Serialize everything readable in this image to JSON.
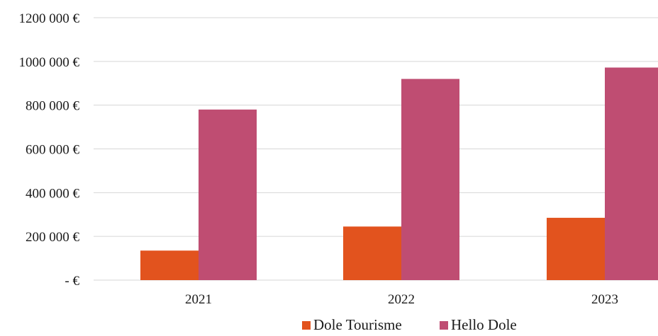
{
  "colors": {
    "dole_tourisme": "#e2531e",
    "hello_dole": "#bf4d72",
    "grid": "#d6d6d6",
    "text": "#1a1a1a"
  },
  "chart_data": {
    "type": "bar",
    "title": "",
    "xlabel": "",
    "ylabel": "",
    "categories": [
      "2021",
      "2022",
      "2023"
    ],
    "series": [
      {
        "name": "Dole Tourisme",
        "values": [
          135000,
          245000,
          285000
        ]
      },
      {
        "name": "Hello Dole",
        "values": [
          780000,
          920000,
          972000
        ]
      }
    ],
    "ylim": [
      0,
      1200000
    ],
    "yticks": [
      0,
      200000,
      400000,
      600000,
      800000,
      1000000,
      1200000
    ],
    "ytick_labels": [
      "-  €",
      "200 000 €",
      "400 000 €",
      "600 000 €",
      "800 000 €",
      "1000 000 €",
      "1200 000 €"
    ],
    "grid": true,
    "legend_position": "bottom"
  }
}
